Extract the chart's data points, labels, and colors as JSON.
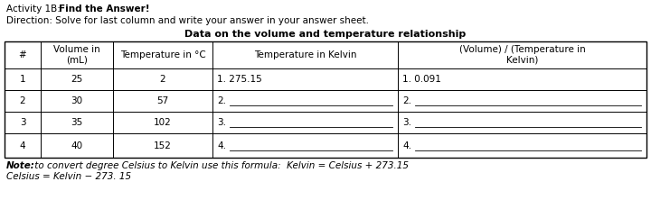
{
  "title_normal": "Activity 1B: ",
  "title_bold": "Find the Answer!",
  "direction": "Direction: Solve for last column and write your answer in your answer sheet.",
  "table_title": "Data on the volume and temperature relationship",
  "col_headers": [
    "#",
    "Volume in\n(mL)",
    "Temperature in °C",
    "Temperature in Kelvin",
    "(Volume) / (Temperature in\nKelvin)"
  ],
  "rows": [
    [
      "1",
      "25",
      "2",
      "1. 275.15",
      "1. 0.091"
    ],
    [
      "2",
      "30",
      "57",
      "2.",
      "2."
    ],
    [
      "3",
      "35",
      "102",
      "3.",
      "3."
    ],
    [
      "4",
      "40",
      "152",
      "4.",
      "4."
    ]
  ],
  "note_bold": "Note:",
  "note_rest": " to convert degree Celsius to Kelvin use this formula:  Kelvin = Celsius + 273.15",
  "note2": "Celsius = Kelvin − 273. 15",
  "bg_color": "#ffffff"
}
